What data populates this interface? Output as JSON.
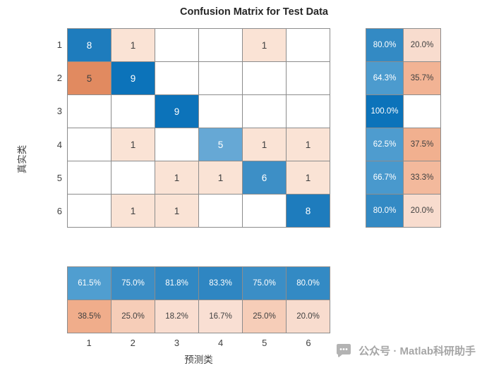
{
  "title": "Confusion Matrix for Test Data",
  "axes": {
    "xlabel": "预测类",
    "ylabel": "真实类",
    "x_ticks": [
      "1",
      "2",
      "3",
      "4",
      "5",
      "6"
    ],
    "y_ticks": [
      "1",
      "2",
      "3",
      "4",
      "5",
      "6"
    ]
  },
  "watermark": {
    "icon": "chat-bubble-icon",
    "text": "公众号 · Matlab科研助手",
    "color": "#a6a6a6"
  },
  "chart_data": {
    "type": "heatmap",
    "title": "Confusion Matrix for Test Data",
    "xlabel": "预测类",
    "ylabel": "真实类",
    "classes": [
      "1",
      "2",
      "3",
      "4",
      "5",
      "6"
    ],
    "matrix": [
      [
        8,
        1,
        0,
        0,
        1,
        0
      ],
      [
        5,
        9,
        0,
        0,
        0,
        0
      ],
      [
        0,
        0,
        9,
        0,
        0,
        0
      ],
      [
        0,
        1,
        0,
        5,
        1,
        1
      ],
      [
        0,
        0,
        1,
        1,
        6,
        1
      ],
      [
        0,
        1,
        1,
        0,
        0,
        8
      ]
    ],
    "matrix_colors": [
      [
        "#1e7cbd",
        "#fae3d5",
        "#ffffff",
        "#ffffff",
        "#fae3d5",
        "#ffffff"
      ],
      [
        "#e18a60",
        "#0c73ba",
        "#ffffff",
        "#ffffff",
        "#ffffff",
        "#ffffff"
      ],
      [
        "#ffffff",
        "#ffffff",
        "#0c73ba",
        "#ffffff",
        "#ffffff",
        "#ffffff"
      ],
      [
        "#ffffff",
        "#fae3d5",
        "#ffffff",
        "#66a8d5",
        "#fae3d5",
        "#fae3d5"
      ],
      [
        "#ffffff",
        "#ffffff",
        "#fae3d5",
        "#fae3d5",
        "#3d8fc6",
        "#fae3d5"
      ],
      [
        "#ffffff",
        "#fae3d5",
        "#fae3d5",
        "#ffffff",
        "#ffffff",
        "#1e7cbd"
      ]
    ],
    "row_summary": {
      "description": "true-class recall / miss rate per row",
      "values": [
        [
          "80.0%",
          "20.0%"
        ],
        [
          "64.3%",
          "35.7%"
        ],
        [
          "100.0%",
          ""
        ],
        [
          "62.5%",
          "37.5%"
        ],
        [
          "66.7%",
          "33.3%"
        ],
        [
          "80.0%",
          "20.0%"
        ]
      ],
      "colors": [
        [
          "#338ac4",
          "#f8dcce"
        ],
        [
          "#4c9bce",
          "#f2b394"
        ],
        [
          "#0c73ba",
          "#ffffff"
        ],
        [
          "#4e9ccf",
          "#f1b08f"
        ],
        [
          "#4999cd",
          "#f3b99c"
        ],
        [
          "#338ac4",
          "#f8dcce"
        ]
      ]
    },
    "col_summary": {
      "description": "predicted-class precision / false discovery rate per column",
      "values": [
        [
          "61.5%",
          "75.0%",
          "81.8%",
          "83.3%",
          "75.0%",
          "80.0%"
        ],
        [
          "38.5%",
          "25.0%",
          "18.2%",
          "16.7%",
          "25.0%",
          "20.0%"
        ]
      ],
      "colors": [
        [
          "#509ed0",
          "#3b8ec6",
          "#3188c3",
          "#2f86c2",
          "#3b8ec6",
          "#338ac4"
        ],
        [
          "#f0ad8b",
          "#f6cdb8",
          "#f9ddd0",
          "#f9dfd3",
          "#f6cdb8",
          "#f8dcce"
        ]
      ]
    },
    "grid_line_color": "#8c8c8c",
    "diagonal_color": "#0c73ba",
    "offdiagonal_color": "#e18a60"
  }
}
